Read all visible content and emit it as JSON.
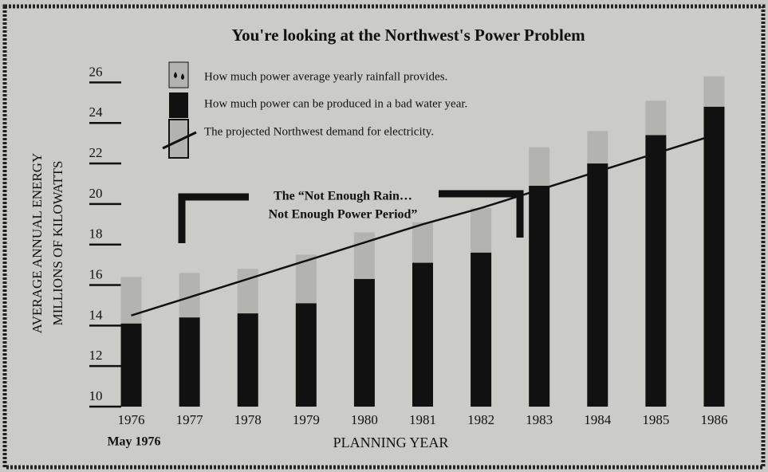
{
  "chart_data": {
    "type": "bar",
    "title": "You're looking at the Northwest's Power Problem",
    "y_label": [
      "AVERAGE ANNUAL ENERGY",
      "MILLIONS OF KILOWATTS"
    ],
    "x_label": "PLANNING YEAR",
    "x_note": "May 1976",
    "annotation": [
      "The “Not Enough Rain…",
      "Not Enough Power Period”"
    ],
    "categories": [
      "1976",
      "1977",
      "1978",
      "1979",
      "1980",
      "1981",
      "1982",
      "1983",
      "1984",
      "1985",
      "1986"
    ],
    "series": [
      {
        "name": "How much power can be produced in a bad water year.",
        "color": "#111111",
        "values": [
          14.1,
          14.4,
          14.6,
          15.1,
          16.3,
          17.1,
          17.6,
          20.9,
          22.0,
          23.4,
          24.8
        ]
      },
      {
        "name": "How much power average yearly rainfall provides.",
        "color": "#b3b3b0",
        "values": [
          2.3,
          2.2,
          2.2,
          2.4,
          2.3,
          2.0,
          2.2,
          1.9,
          1.6,
          1.7,
          1.5
        ]
      },
      {
        "name": "The projected Northwest demand for electricity.",
        "color": "#111111",
        "type": "line",
        "values": [
          14.5,
          15.4,
          16.3,
          17.2,
          18.1,
          19.0,
          19.8,
          20.7,
          21.6,
          22.5,
          23.4
        ]
      }
    ],
    "ylim": [
      10,
      27
    ],
    "yticks": [
      10,
      12,
      14,
      16,
      18,
      20,
      22,
      24,
      26
    ]
  }
}
